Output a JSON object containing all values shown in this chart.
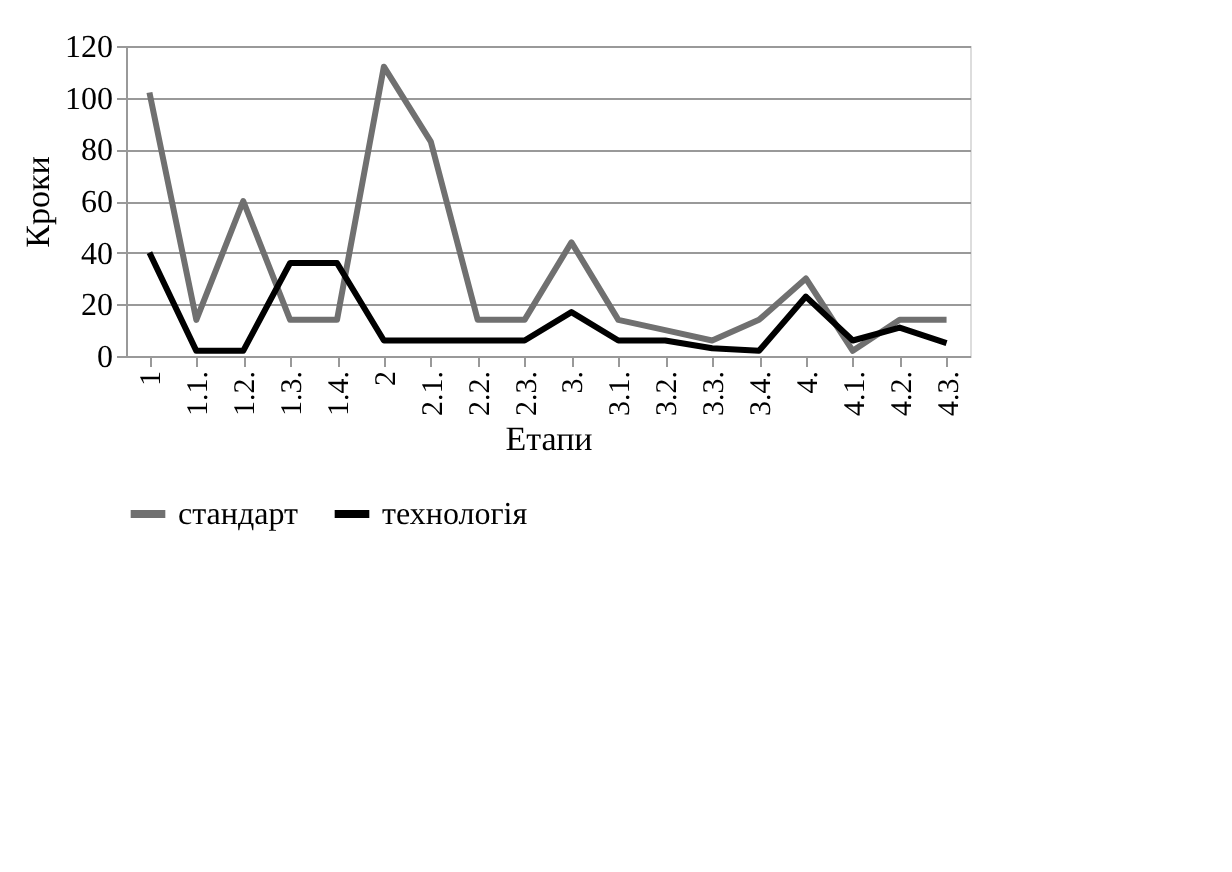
{
  "chart_data": {
    "type": "line",
    "xlabel": "Етапи",
    "ylabel": "Кроки",
    "categories": [
      "1",
      "1.1.",
      "1.2.",
      "1.3.",
      "1.4.",
      "2",
      "2.1.",
      "2.2.",
      "2.3.",
      "3.",
      "3.1.",
      "3.2.",
      "3.3.",
      "3.4.",
      "4.",
      "4.1.",
      "4.2.",
      "4.3."
    ],
    "series": [
      {
        "name": "стандарт",
        "color": "#707070",
        "values": [
          102,
          14,
          60,
          14,
          14,
          112,
          83,
          14,
          14,
          44,
          14,
          10,
          6,
          14,
          30,
          2,
          14,
          14
        ]
      },
      {
        "name": "технологія",
        "color": "#000000",
        "values": [
          40,
          2,
          2,
          36,
          36,
          6,
          6,
          6,
          6,
          17,
          6,
          6,
          3,
          2,
          23,
          6,
          11,
          5
        ]
      }
    ],
    "ylim": [
      0,
      120
    ],
    "yticks": [
      0,
      20,
      40,
      60,
      80,
      100,
      120
    ],
    "grid": "y",
    "legend": "bottom",
    "marker": "none",
    "line_style": "solid"
  }
}
